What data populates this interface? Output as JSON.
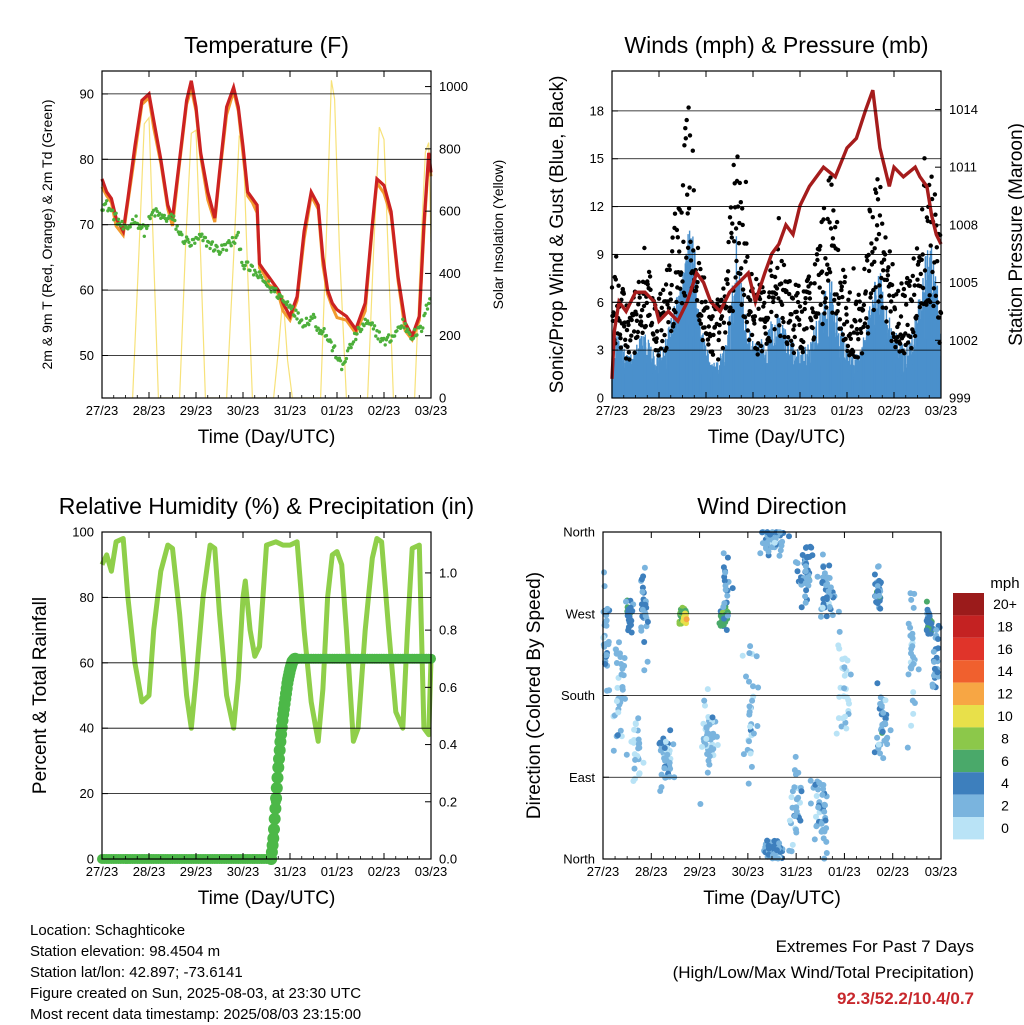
{
  "colors": {
    "temp2m": "#cc2222",
    "temp9m": "#f29a2e",
    "dewpoint": "#4caf3a",
    "solar": "#f7e27a",
    "wind": "#4a90cc",
    "gust": "#000000",
    "pressure": "#a51c1c",
    "rh": "#8fcf4a",
    "rain": "#4cb848"
  },
  "speed_legend": {
    "title": "mph",
    "labels": [
      "20+",
      "18",
      "16",
      "14",
      "12",
      "10",
      "8",
      "6",
      "4",
      "2",
      "0"
    ],
    "colors": [
      "#9b1b1b",
      "#c42222",
      "#e0342a",
      "#f0602e",
      "#f7a644",
      "#e8e04a",
      "#8cc84a",
      "#4aa96a",
      "#3d7fbd",
      "#7ab4de",
      "#b9e3f6"
    ]
  },
  "chart_data": [
    {
      "type": "line",
      "title": "Temperature (F)",
      "xlabel": "Time (Day/UTC)",
      "ylabel": "2m & 9m T (Red, Orange) & 2m Td (Green)",
      "y2label": "Solar Insolation (Yellow)",
      "x_ticks": [
        "27/23",
        "28/23",
        "29/23",
        "30/23",
        "31/23",
        "01/23",
        "02/23",
        "03/23"
      ],
      "y_ticks": [
        "50",
        "60",
        "70",
        "80",
        "90"
      ],
      "y2_ticks": [
        "0",
        "200",
        "400",
        "600",
        "800",
        "1000"
      ],
      "ylim": [
        43.5,
        93.5
      ],
      "y2lim": [
        0,
        1050
      ],
      "xlim": [
        0,
        7
      ],
      "series": [
        {
          "key": "t2m",
          "axis": "left",
          "x": [
            0,
            0.1,
            0.2,
            0.3,
            0.45,
            0.55,
            0.7,
            0.85,
            1.0,
            1.1,
            1.25,
            1.4,
            1.5,
            1.65,
            1.8,
            1.9,
            2.0,
            2.1,
            2.25,
            2.4,
            2.5,
            2.65,
            2.8,
            2.9,
            3.0,
            3.1,
            3.2,
            3.3,
            3.35,
            3.45,
            3.55,
            3.65,
            3.75,
            3.85,
            4.0,
            4.15,
            4.3,
            4.45,
            4.6,
            4.7,
            4.8,
            4.9,
            5.0,
            5.2,
            5.4,
            5.6,
            5.75,
            5.85,
            6.0,
            6.15,
            6.3,
            6.45,
            6.6,
            6.75,
            6.85,
            6.95,
            7.0
          ],
          "y": [
            77,
            75,
            74,
            71,
            69,
            74,
            82,
            89,
            90,
            86,
            80,
            73,
            71,
            80,
            89,
            92,
            88,
            81,
            75,
            71,
            78,
            88,
            91,
            88,
            82,
            75,
            74,
            73,
            64,
            63,
            62,
            61,
            60,
            58,
            56,
            59,
            69,
            75,
            73,
            65,
            60,
            58,
            57,
            56,
            54,
            58,
            70,
            77,
            76,
            72,
            62,
            55,
            53,
            56,
            70,
            81,
            78
          ]
        },
        {
          "key": "td2m",
          "axis": "left",
          "x": [
            0,
            0.1,
            0.3,
            0.5,
            0.7,
            0.9,
            1.1,
            1.3,
            1.5,
            1.7,
            1.9,
            2.1,
            2.3,
            2.5,
            2.7,
            2.9,
            3.0,
            3.2,
            3.35,
            3.5,
            3.65,
            3.8,
            3.9,
            4.0,
            4.15,
            4.3,
            4.5,
            4.6,
            4.7,
            4.85,
            5.0,
            5.1,
            5.2,
            5.4,
            5.6,
            5.8,
            6.0,
            6.2,
            6.4,
            6.6,
            6.8,
            7.0
          ],
          "y": [
            73,
            73,
            71,
            69,
            71,
            69,
            72,
            71,
            71,
            68,
            67,
            68,
            67,
            66,
            67,
            68,
            64,
            63,
            62,
            61,
            60,
            59,
            58,
            58,
            56,
            55,
            56,
            54,
            54,
            52,
            50,
            48,
            50,
            53,
            55,
            54,
            52,
            53,
            55,
            53,
            54,
            60
          ]
        },
        {
          "key": "solar",
          "axis": "right",
          "x": [
            0.65,
            0.78,
            0.9,
            1.0,
            1.1,
            1.2,
            1.65,
            1.78,
            1.9,
            2.0,
            2.1,
            2.2,
            2.65,
            2.8,
            2.92,
            3.0,
            3.1,
            3.2,
            3.65,
            3.75,
            3.85,
            3.95,
            4.05,
            4.65,
            4.78,
            4.88,
            4.95,
            5.05,
            5.2,
            5.65,
            5.78,
            5.9,
            6.0,
            6.1,
            6.2,
            6.65,
            6.78,
            6.88,
            6.95,
            7.0
          ],
          "y": [
            0,
            450,
            880,
            900,
            450,
            0,
            0,
            500,
            850,
            860,
            450,
            0,
            0,
            450,
            840,
            830,
            400,
            0,
            0,
            150,
            330,
            120,
            0,
            0,
            550,
            1020,
            960,
            480,
            0,
            0,
            480,
            870,
            830,
            420,
            0,
            0,
            470,
            790,
            820,
            500
          ]
        }
      ]
    },
    {
      "type": "scatter",
      "title": "Winds (mph) & Pressure (mb)",
      "xlabel": "Time (Day/UTC)",
      "ylabel": "Sonic/Prop Wind & Gust (Blue, Black)",
      "y2label": "Station Pressure (Maroon)",
      "x_ticks": [
        "27/23",
        "28/23",
        "29/23",
        "30/23",
        "31/23",
        "01/23",
        "02/23",
        "03/23"
      ],
      "y_ticks": [
        "0",
        "3",
        "6",
        "9",
        "12",
        "15",
        "18"
      ],
      "y2_ticks": [
        "999",
        "1002",
        "1005",
        "1008",
        "1011",
        "1014"
      ],
      "ylim": [
        0,
        20.5
      ],
      "y2lim": [
        999,
        1016
      ],
      "xlim": [
        0,
        7
      ],
      "wind_envelope_x": [
        0,
        0.1,
        0.3,
        0.5,
        0.7,
        0.9,
        1.1,
        1.3,
        1.5,
        1.65,
        1.75,
        1.85,
        2.0,
        2.2,
        2.4,
        2.55,
        2.65,
        2.75,
        2.9,
        3.1,
        3.3,
        3.5,
        3.7,
        3.9,
        4.1,
        4.3,
        4.5,
        4.65,
        4.8,
        5.0,
        5.2,
        5.4,
        5.6,
        5.7,
        5.8,
        6.0,
        6.2,
        6.4,
        6.55,
        6.65,
        6.8,
        6.95,
        7.0
      ],
      "wind_envelope_y": [
        3,
        4,
        2.5,
        3,
        4,
        2.5,
        3,
        5,
        7.5,
        10,
        9,
        5,
        3,
        2,
        3,
        6,
        9.5,
        7,
        4,
        3,
        4,
        5,
        4,
        3,
        3,
        4,
        6,
        7,
        5,
        3,
        2.5,
        4,
        7,
        8,
        6,
        4,
        3,
        4,
        6,
        8,
        9,
        6,
        3
      ],
      "gust_x": [
        0,
        0.1,
        0.3,
        0.5,
        0.7,
        0.9,
        1.1,
        1.3,
        1.5,
        1.65,
        1.75,
        1.85,
        2.0,
        2.2,
        2.4,
        2.55,
        2.65,
        2.75,
        2.9,
        3.1,
        3.3,
        3.5,
        3.7,
        3.9,
        4.1,
        4.3,
        4.5,
        4.65,
        4.8,
        5.0,
        5.2,
        5.4,
        5.6,
        5.7,
        5.8,
        6.0,
        6.2,
        6.4,
        6.55,
        6.65,
        6.8,
        6.95,
        7.0
      ],
      "gust_y": [
        6,
        7,
        5,
        6,
        8,
        5,
        6,
        9,
        13,
        16,
        14,
        8,
        6,
        5,
        6,
        11,
        15,
        11,
        8,
        6,
        7,
        8,
        7,
        6,
        6,
        8,
        10,
        12,
        9,
        6,
        5,
        7,
        11,
        12,
        9,
        7,
        6,
        7,
        10,
        12,
        13,
        9,
        5
      ],
      "pressure_x": [
        0,
        0.05,
        0.15,
        0.3,
        0.5,
        0.7,
        0.9,
        1.0,
        1.2,
        1.4,
        1.6,
        1.8,
        1.95,
        2.1,
        2.3,
        2.5,
        2.7,
        2.9,
        3.05,
        3.25,
        3.4,
        3.55,
        3.7,
        3.85,
        4.0,
        4.2,
        4.5,
        4.75,
        5.0,
        5.2,
        5.4,
        5.55,
        5.7,
        5.9,
        6.0,
        6.2,
        6.45,
        6.55,
        6.7,
        6.8,
        6.9,
        7.0
      ],
      "pressure_y": [
        1000,
        1002.5,
        1004,
        1003.5,
        1004.5,
        1004.5,
        1004,
        1003,
        1003.5,
        1003,
        1004,
        1005.5,
        1005,
        1004,
        1003.5,
        1004.5,
        1005,
        1005.5,
        1004,
        1005.5,
        1006.5,
        1007,
        1008,
        1007.5,
        1009,
        1010,
        1011,
        1010.5,
        1012,
        1012.5,
        1014,
        1015,
        1012,
        1010,
        1011,
        1010.5,
        1011,
        1010.5,
        1010,
        1008.5,
        1007.5,
        1007
      ]
    },
    {
      "type": "line",
      "title": "Relative Humidity (%) & Precipitation (in)",
      "xlabel": "Time (Day/UTC)",
      "ylabel": "Percent & Total Rainfall",
      "x_ticks": [
        "27/23",
        "28/23",
        "29/23",
        "30/23",
        "31/23",
        "01/23",
        "02/23",
        "03/23"
      ],
      "y_ticks": [
        "0",
        "20",
        "40",
        "60",
        "80",
        "100"
      ],
      "y2_ticks": [
        "0.0",
        "0.2",
        "0.4",
        "0.6",
        "0.8",
        "1.0"
      ],
      "ylim": [
        0,
        100
      ],
      "y2lim": [
        0,
        1.143
      ],
      "xlim": [
        0,
        7
      ],
      "series": [
        {
          "key": "rh",
          "axis": "left",
          "x": [
            0,
            0.1,
            0.2,
            0.3,
            0.45,
            0.55,
            0.7,
            0.85,
            1.0,
            1.1,
            1.25,
            1.4,
            1.5,
            1.65,
            1.8,
            1.9,
            2.0,
            2.15,
            2.3,
            2.4,
            2.5,
            2.65,
            2.8,
            2.9,
            3.0,
            3.05,
            3.15,
            3.25,
            3.35,
            3.5,
            3.7,
            3.85,
            4.0,
            4.15,
            4.3,
            4.45,
            4.6,
            4.7,
            4.8,
            4.9,
            5.0,
            5.1,
            5.2,
            5.35,
            5.45,
            5.6,
            5.75,
            5.85,
            5.95,
            6.1,
            6.25,
            6.4,
            6.5,
            6.6,
            6.75,
            6.85,
            6.95,
            7.0
          ],
          "y": [
            90,
            93,
            88,
            97,
            98,
            80,
            60,
            48,
            50,
            70,
            88,
            96,
            95,
            75,
            50,
            40,
            55,
            80,
            96,
            95,
            75,
            50,
            40,
            55,
            80,
            85,
            70,
            62,
            65,
            96,
            97,
            96,
            96,
            97,
            70,
            48,
            36,
            52,
            80,
            93,
            94,
            90,
            70,
            36,
            40,
            70,
            92,
            98,
            97,
            70,
            45,
            40,
            70,
            95,
            96,
            40,
            38,
            61
          ]
        },
        {
          "key": "rain",
          "axis": "right",
          "x": [
            0,
            3.6,
            3.65,
            3.7,
            3.75,
            3.8,
            3.85,
            3.9,
            3.95,
            4.0,
            4.05,
            4.1,
            7.0
          ],
          "y": [
            0,
            0,
            0.08,
            0.2,
            0.32,
            0.42,
            0.5,
            0.56,
            0.62,
            0.66,
            0.69,
            0.7,
            0.7
          ]
        }
      ]
    },
    {
      "type": "scatter",
      "title": "Wind Direction",
      "xlabel": "Time (Day/UTC)",
      "ylabel": "Direction (Colored By Speed)",
      "x_ticks": [
        "27/23",
        "28/23",
        "29/23",
        "30/23",
        "31/23",
        "01/23",
        "02/23",
        "03/23"
      ],
      "y_ticks": [
        "North",
        "West",
        "South",
        "East",
        "North"
      ],
      "xlim": [
        0,
        7
      ],
      "ylim": [
        0,
        360
      ],
      "clusters": [
        {
          "x": 0.05,
          "d": 240,
          "sx": 0.08,
          "sd": 60,
          "n": 40,
          "s": 2.5
        },
        {
          "x": 0.35,
          "d": 180,
          "sx": 0.1,
          "sd": 70,
          "n": 35,
          "s": 1.5
        },
        {
          "x": 0.55,
          "d": 270,
          "sx": 0.06,
          "sd": 15,
          "n": 25,
          "s": 4
        },
        {
          "x": 0.7,
          "d": 120,
          "sx": 0.08,
          "sd": 30,
          "n": 25,
          "s": 1
        },
        {
          "x": 0.85,
          "d": 280,
          "sx": 0.08,
          "sd": 40,
          "n": 30,
          "s": 3
        },
        {
          "x": 1.3,
          "d": 110,
          "sx": 0.12,
          "sd": 25,
          "n": 45,
          "s": 2.5
        },
        {
          "x": 1.65,
          "d": 270,
          "sx": 0.06,
          "sd": 8,
          "n": 40,
          "s": 7.5
        },
        {
          "x": 1.7,
          "d": 265,
          "sx": 0.05,
          "sd": 5,
          "n": 10,
          "s": 10
        },
        {
          "x": 2.2,
          "d": 130,
          "sx": 0.15,
          "sd": 35,
          "n": 45,
          "s": 1.5
        },
        {
          "x": 2.5,
          "d": 265,
          "sx": 0.08,
          "sd": 12,
          "n": 40,
          "s": 6
        },
        {
          "x": 2.55,
          "d": 300,
          "sx": 0.08,
          "sd": 30,
          "n": 20,
          "s": 3
        },
        {
          "x": 3.05,
          "d": 160,
          "sx": 0.1,
          "sd": 60,
          "n": 30,
          "s": 1.5
        },
        {
          "x": 3.5,
          "d": 350,
          "sx": 0.2,
          "sd": 12,
          "n": 55,
          "s": 2.5
        },
        {
          "x": 3.55,
          "d": 10,
          "sx": 0.15,
          "sd": 10,
          "n": 60,
          "s": 3
        },
        {
          "x": 4.0,
          "d": 60,
          "sx": 0.12,
          "sd": 40,
          "n": 30,
          "s": 1.5
        },
        {
          "x": 4.2,
          "d": 320,
          "sx": 0.12,
          "sd": 25,
          "n": 45,
          "s": 3.5
        },
        {
          "x": 4.5,
          "d": 50,
          "sx": 0.15,
          "sd": 35,
          "n": 40,
          "s": 2
        },
        {
          "x": 4.6,
          "d": 300,
          "sx": 0.15,
          "sd": 30,
          "n": 40,
          "s": 2.5
        },
        {
          "x": 5.0,
          "d": 200,
          "sx": 0.15,
          "sd": 60,
          "n": 30,
          "s": 1
        },
        {
          "x": 5.7,
          "d": 300,
          "sx": 0.06,
          "sd": 20,
          "n": 30,
          "s": 3.5
        },
        {
          "x": 5.8,
          "d": 150,
          "sx": 0.12,
          "sd": 40,
          "n": 35,
          "s": 2.5
        },
        {
          "x": 6.4,
          "d": 220,
          "sx": 0.1,
          "sd": 70,
          "n": 30,
          "s": 1.5
        },
        {
          "x": 6.75,
          "d": 260,
          "sx": 0.06,
          "sd": 15,
          "n": 35,
          "s": 4.5
        },
        {
          "x": 6.9,
          "d": 230,
          "sx": 0.06,
          "sd": 40,
          "n": 25,
          "s": 3
        }
      ]
    }
  ],
  "info": {
    "location": "Location: Schaghticoke",
    "elevation": "Station elevation: 98.4504 m",
    "latlon": "Station lat/lon: 42.897; -73.6141",
    "created": "Figure created on Sun, 2025-08-03, at 23:30 UTC",
    "recent": "Most recent data timestamp: 2025/08/03 23:15:00"
  },
  "extremes": {
    "title": "Extremes For Past 7 Days",
    "subtitle": "(High/Low/Max Wind/Total Precipitation)",
    "values": "92.3/52.2/10.4/0.7"
  }
}
